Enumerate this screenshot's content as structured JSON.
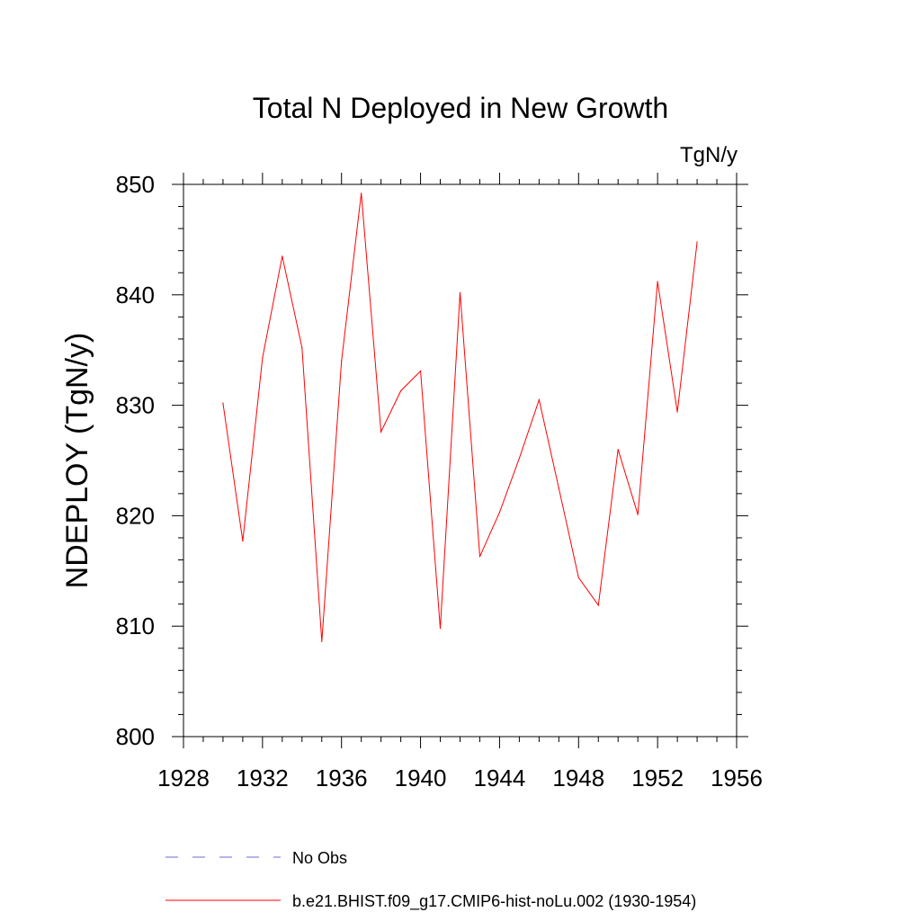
{
  "chart_data": {
    "type": "line",
    "title": "Total N Deployed in New Growth",
    "units": "TgN/y",
    "ylabel": "NDEPLOY  (TgN/y)",
    "xlabel": "",
    "xlim": [
      1928,
      1956
    ],
    "ylim": [
      800,
      850
    ],
    "x_ticks": [
      "1928",
      "1932",
      "1936",
      "1940",
      "1944",
      "1948",
      "1952",
      "1956"
    ],
    "y_ticks": [
      "800",
      "810",
      "820",
      "830",
      "840",
      "850"
    ],
    "grid": false,
    "series": [
      {
        "name": "b.e21.BHIST.f09_g17.CMIP6-hist-noLu.002 (1930-1954)",
        "color": "#ff0000",
        "x": [
          1930,
          1931,
          1932,
          1933,
          1934,
          1935,
          1936,
          1937,
          1938,
          1939,
          1940,
          1941,
          1942,
          1943,
          1944,
          1945,
          1946,
          1947,
          1948,
          1949,
          1950,
          1951,
          1952,
          1953,
          1954
        ],
        "y": [
          830.2,
          817.7,
          834.3,
          843.5,
          835.2,
          808.6,
          834.0,
          849.2,
          827.6,
          831.3,
          833.1,
          809.8,
          840.2,
          816.3,
          820.3,
          825.2,
          830.5,
          822.5,
          814.4,
          811.9,
          826.0,
          820.1,
          841.2,
          829.4,
          844.8
        ]
      }
    ],
    "legend": [
      {
        "label": "No Obs",
        "color": "#6a6ad2",
        "style": "dashed"
      },
      {
        "label": "b.e21.BHIST.f09_g17.CMIP6-hist-noLu.002 (1930-1954)",
        "color": "#ff0000",
        "style": "solid"
      }
    ],
    "legend_position": "bottom"
  }
}
